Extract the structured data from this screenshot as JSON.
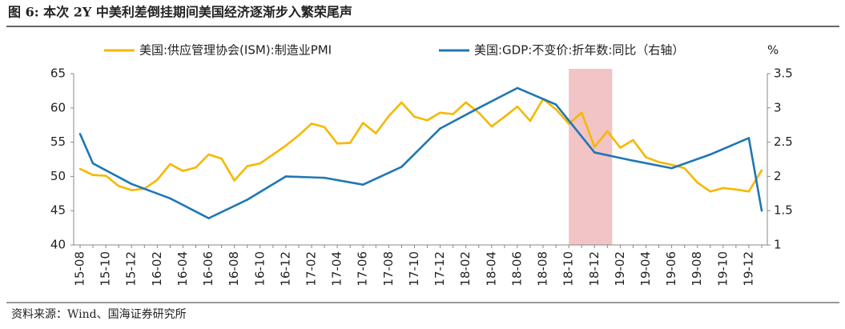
{
  "chart_data": {
    "type": "line",
    "title": "图 6:    本次 2Y 中美利差倒挂期间美国经济逐渐步入繁荣尾声",
    "source": "资料来源：Wind、国海证券研究所",
    "y2_unit": "%",
    "categories": [
      "15-08",
      null,
      "15-10",
      null,
      "15-12",
      null,
      "16-02",
      null,
      "16-04",
      null,
      "16-06",
      null,
      "16-08",
      null,
      "16-10",
      null,
      "16-12",
      null,
      "17-02",
      null,
      "17-04",
      null,
      "17-06",
      null,
      "17-08",
      null,
      "17-10",
      null,
      "17-12",
      null,
      "18-02",
      null,
      "18-04",
      null,
      "18-06",
      null,
      "18-08",
      null,
      "18-10",
      null,
      "18-12",
      null,
      "19-02",
      null,
      "19-04",
      null,
      "19-06",
      null,
      "19-08",
      null,
      "19-10",
      null,
      "19-12",
      null
    ],
    "series": [
      {
        "name": "美国:供应管理协会(ISM):制造业PMI",
        "color": "#f5b800",
        "axis": "y",
        "values": [
          51.1,
          50.2,
          50.1,
          48.6,
          48.0,
          48.2,
          49.5,
          51.8,
          50.8,
          51.3,
          53.2,
          52.6,
          49.4,
          51.5,
          51.9,
          53.2,
          54.5,
          56.0,
          57.7,
          57.2,
          54.8,
          54.9,
          57.8,
          56.3,
          58.8,
          60.8,
          58.7,
          58.2,
          59.3,
          59.1,
          60.8,
          59.3,
          57.3,
          58.7,
          60.2,
          58.1,
          61.3,
          59.8,
          57.7,
          59.3,
          54.3,
          56.6,
          54.2,
          55.3,
          52.8,
          52.1,
          51.7,
          51.2,
          49.1,
          47.8,
          48.3,
          48.1,
          47.8,
          50.9
        ]
      },
      {
        "name": "美国:GDP:不变价:折年数:同比（右轴）",
        "color": "#1f77b4",
        "axis": "y2",
        "values": [
          2.62,
          2.19,
          null,
          null,
          1.89,
          null,
          null,
          1.68,
          null,
          null,
          1.39,
          null,
          null,
          1.66,
          null,
          null,
          2.0,
          null,
          null,
          1.98,
          null,
          null,
          1.88,
          null,
          null,
          2.14,
          null,
          null,
          2.7,
          null,
          null,
          3.0,
          null,
          null,
          3.29,
          null,
          null,
          3.05,
          null,
          null,
          2.35,
          null,
          null,
          2.23,
          null,
          null,
          2.12,
          null,
          null,
          2.32,
          null,
          null,
          2.56,
          1.5
        ]
      }
    ],
    "highlight": [
      38,
      41
    ],
    "highlight_color": "#f2c4c6",
    "ylim": [
      40,
      65
    ],
    "yticks": [
      40,
      45,
      50,
      55,
      60,
      65
    ],
    "y2lim": [
      1,
      3.5
    ],
    "y2ticks": [
      1,
      1.5,
      2,
      2.5,
      3,
      3.5
    ]
  }
}
